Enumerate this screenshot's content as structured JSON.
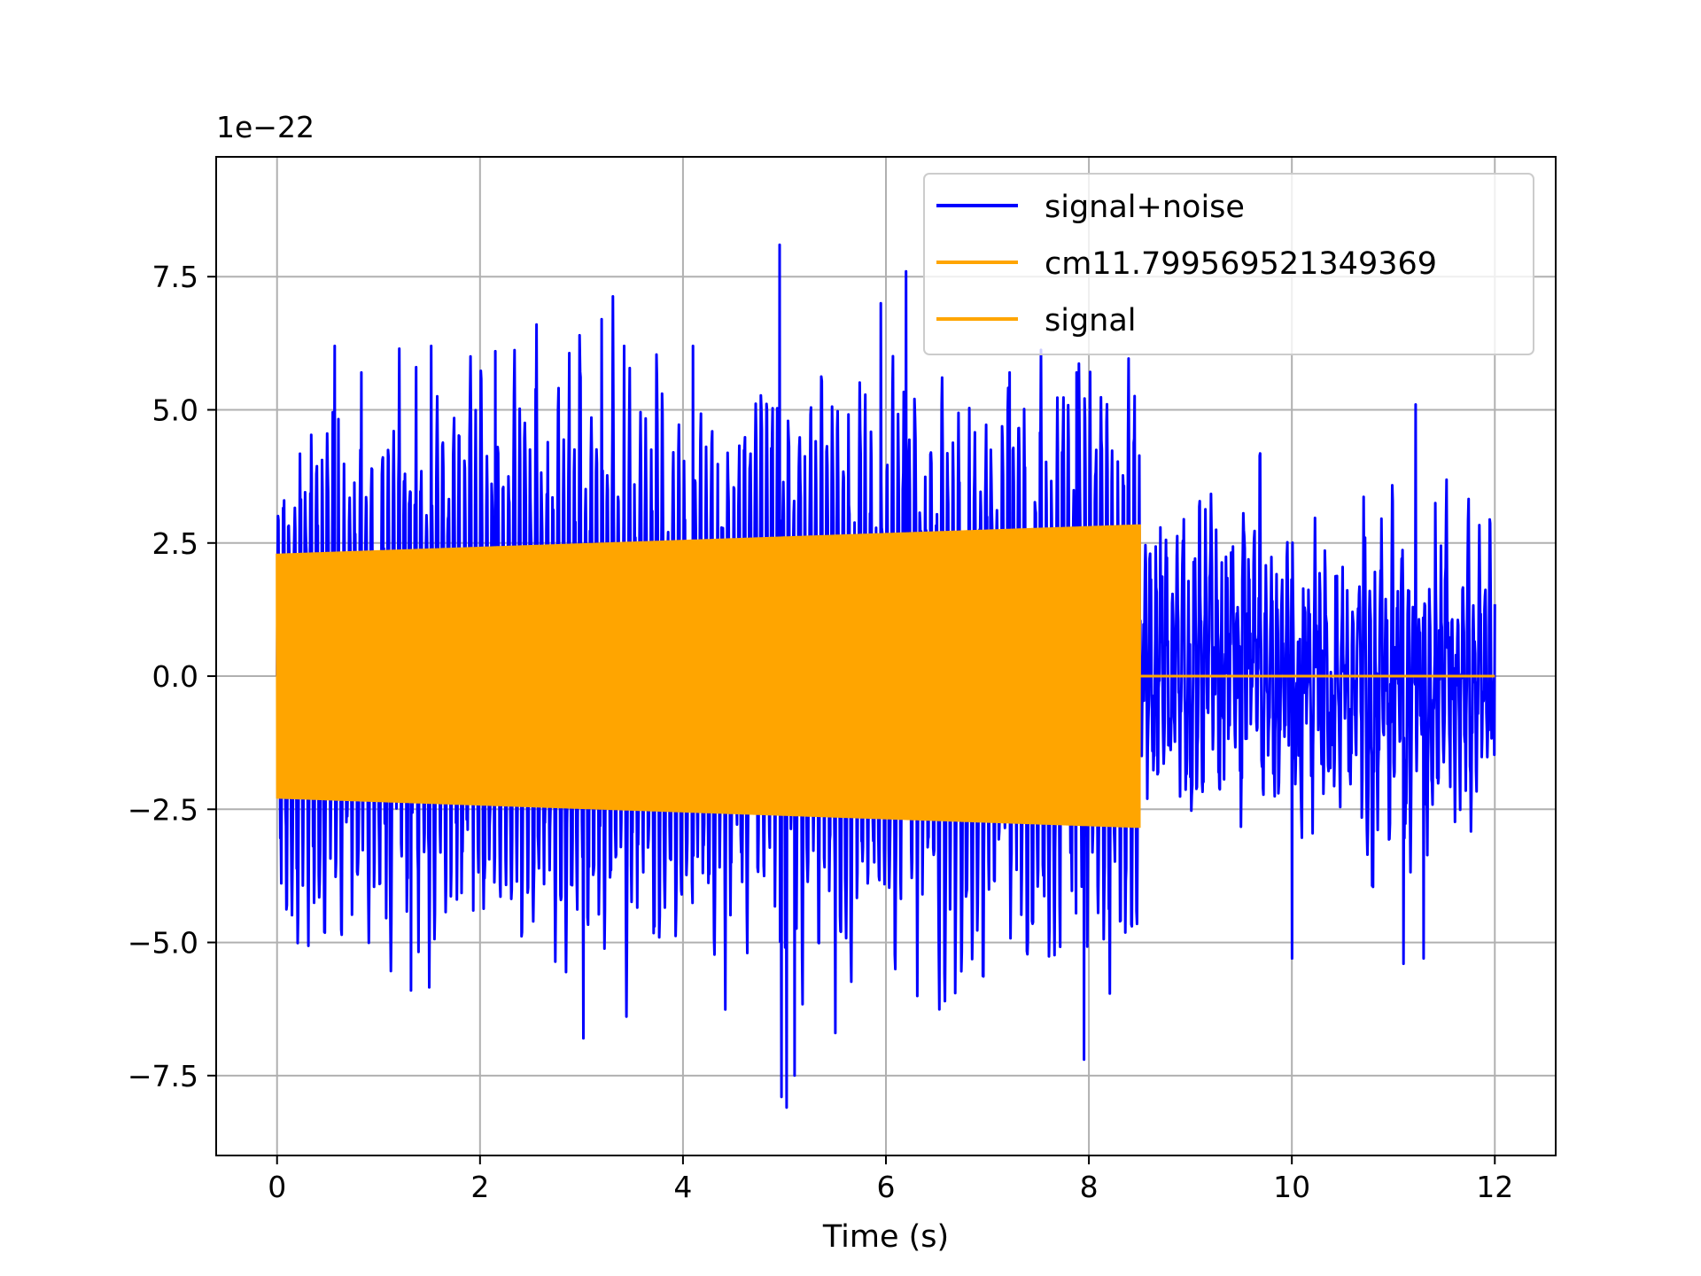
{
  "chart_data": {
    "type": "line",
    "title": "",
    "xlabel": "Time (s)",
    "ylabel": "",
    "y_offset_text": "1e−22",
    "y_scale": 1e-22,
    "xlim": [
      -0.6,
      12.6
    ],
    "ylim": [
      -9.0,
      9.75
    ],
    "xticks": [
      0,
      2,
      4,
      6,
      8,
      10,
      12
    ],
    "xtick_labels": [
      "0",
      "2",
      "4",
      "6",
      "8",
      "10",
      "12"
    ],
    "yticks": [
      -7.5,
      -5.0,
      -2.5,
      0.0,
      2.5,
      5.0,
      7.5
    ],
    "ytick_labels": [
      "−7.5",
      "−5.0",
      "−2.5",
      "0.0",
      "2.5",
      "5.0",
      "7.5"
    ],
    "grid": true,
    "legend_position": "top-right",
    "series": [
      {
        "name": "signal+noise",
        "color": "#0000ff",
        "x_range": [
          0,
          12
        ],
        "description_values": {
          "typical_envelope": [
            -4.5,
            4.5
          ],
          "max_peak": [
            5.0,
            8.9
          ],
          "min_peak": [
            5.0,
            -8.1
          ]
        }
      },
      {
        "name": "cm11.799569521349369",
        "color": "#ffa500",
        "x_range": [
          0,
          12
        ],
        "signal_end": 8.5,
        "amplitude_start": 2.3,
        "amplitude_end": 2.85
      },
      {
        "name": "signal",
        "color": "#ffa500",
        "x_range": [
          0,
          12
        ],
        "signal_end": 8.5,
        "amplitude_start": 2.3,
        "amplitude_end": 2.85
      }
    ]
  },
  "colors": {
    "noise": "#0000ff",
    "signal": "#ffa500",
    "grid": "#b0b0b0",
    "axes": "#000000"
  }
}
